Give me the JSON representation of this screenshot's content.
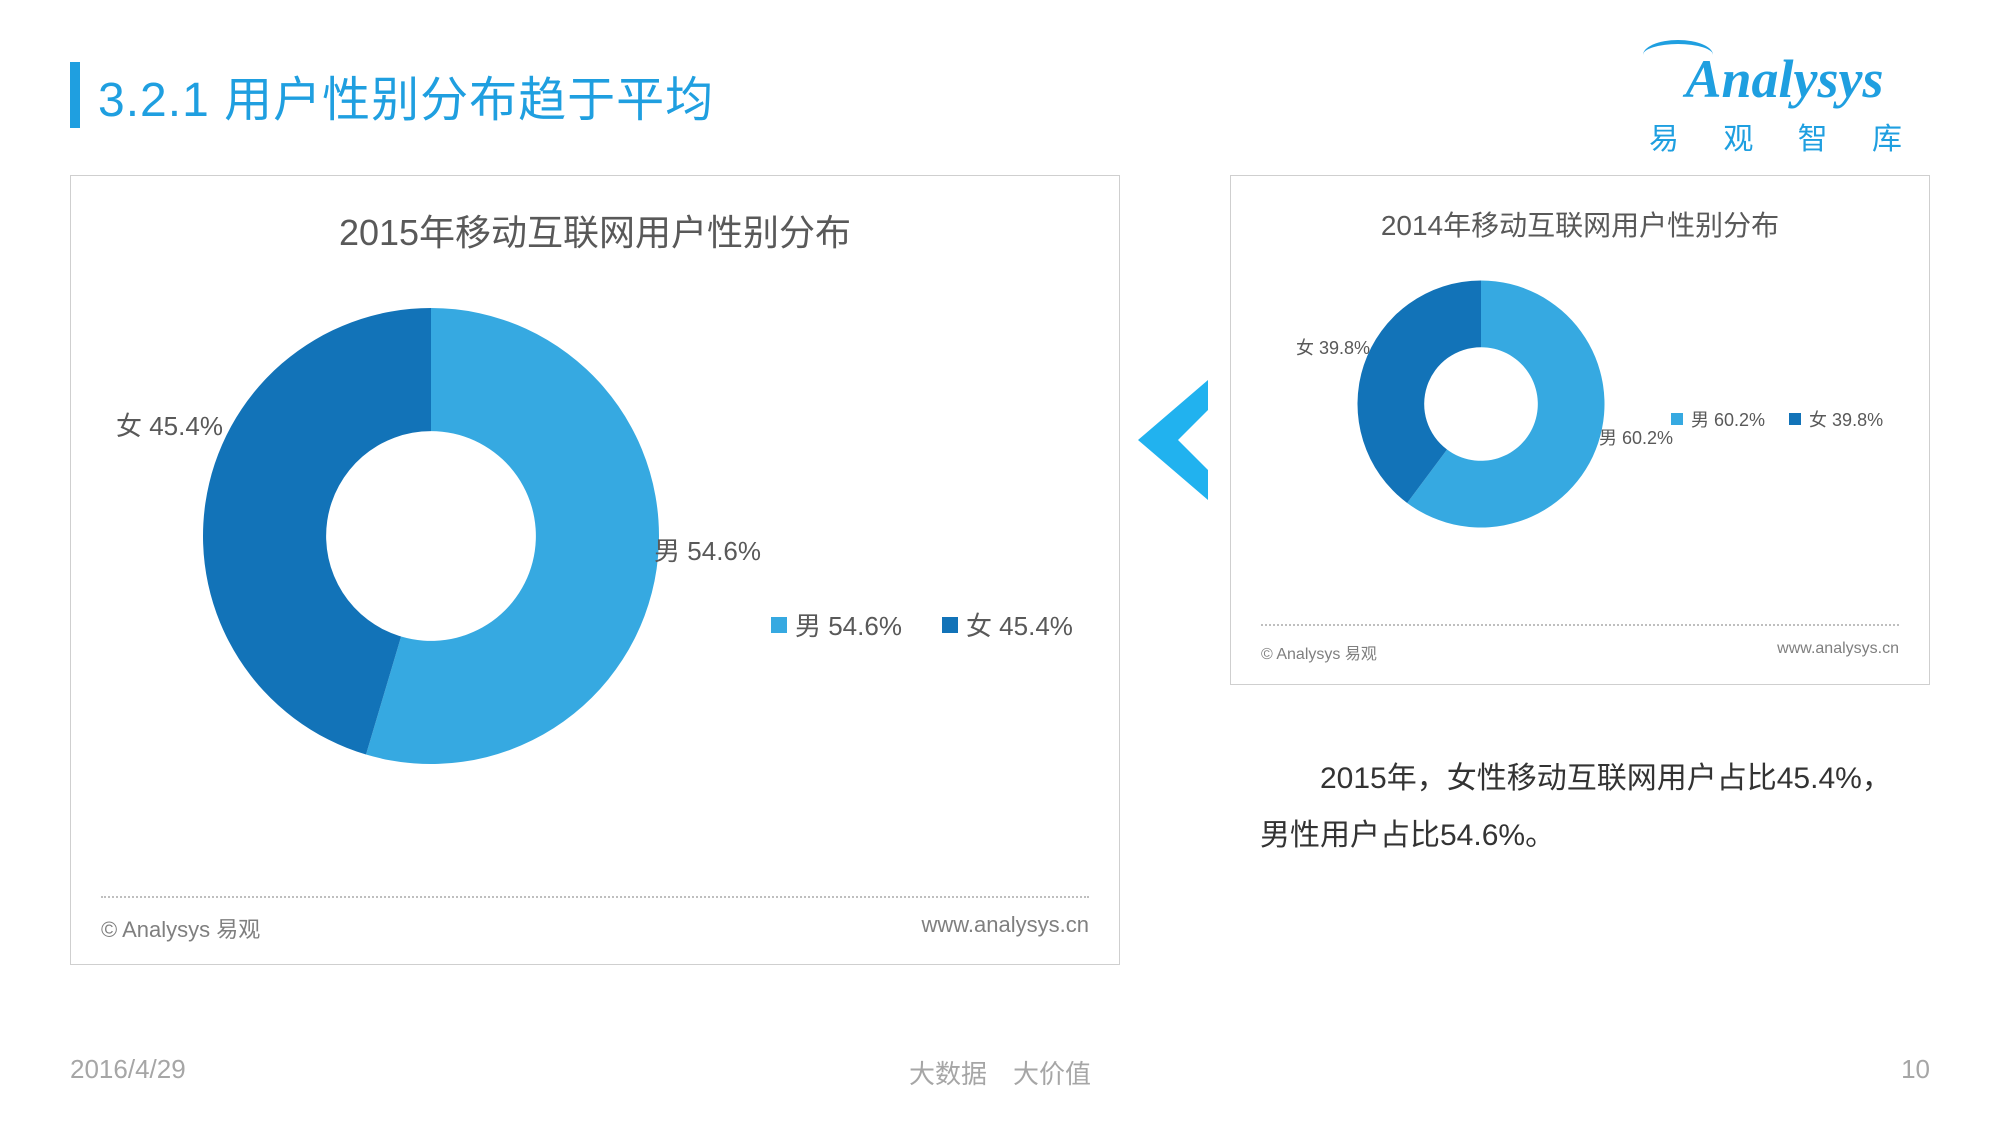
{
  "title": "3.2.1 用户性别分布趋于平均",
  "logo": {
    "brand": "Analysys",
    "sub": "易 观 智 库"
  },
  "colors": {
    "male": "#36a9e1",
    "female": "#1273b8",
    "accent": "#1f9fe0",
    "text": "#595959",
    "muted": "#7f7f7f",
    "border": "#cfcfcf",
    "bg": "#ffffff"
  },
  "chartLarge": {
    "title": "2015年移动互联网用户性别分布",
    "type": "donut",
    "innerRatio": 0.46,
    "series": [
      {
        "label": "男 54.6%",
        "value": 54.6,
        "colorKey": "male"
      },
      {
        "label": "女 45.4%",
        "value": 45.4,
        "colorKey": "female"
      }
    ],
    "legend": [
      {
        "text": "男 54.6%",
        "colorKey": "male"
      },
      {
        "text": "女 45.4%",
        "colorKey": "female"
      }
    ],
    "copyright": "© Analysys 易观",
    "url": "www.analysys.cn",
    "legendFontSize": 26,
    "sliceLabelFontSize": 26,
    "footerFontSize": 22
  },
  "chartSmall": {
    "title": "2014年移动互联网用户性别分布",
    "type": "donut",
    "innerRatio": 0.46,
    "series": [
      {
        "label": "男 60.2%",
        "value": 60.2,
        "colorKey": "male"
      },
      {
        "label": "女 39.8%",
        "value": 39.8,
        "colorKey": "female"
      }
    ],
    "legend": [
      {
        "text": "男 60.2%",
        "colorKey": "male"
      },
      {
        "text": "女 39.8%",
        "colorKey": "female"
      }
    ],
    "copyright": "© Analysys 易观",
    "url": "www.analysys.cn",
    "legendFontSize": 18,
    "sliceLabelFontSize": 18,
    "footerFontSize": 16
  },
  "summary": "2015年，女性移动互联网用户占比45.4%，男性用户占比54.6%。",
  "footer": {
    "date": "2016/4/29",
    "tagline": "大数据 大价值",
    "page": "10"
  }
}
